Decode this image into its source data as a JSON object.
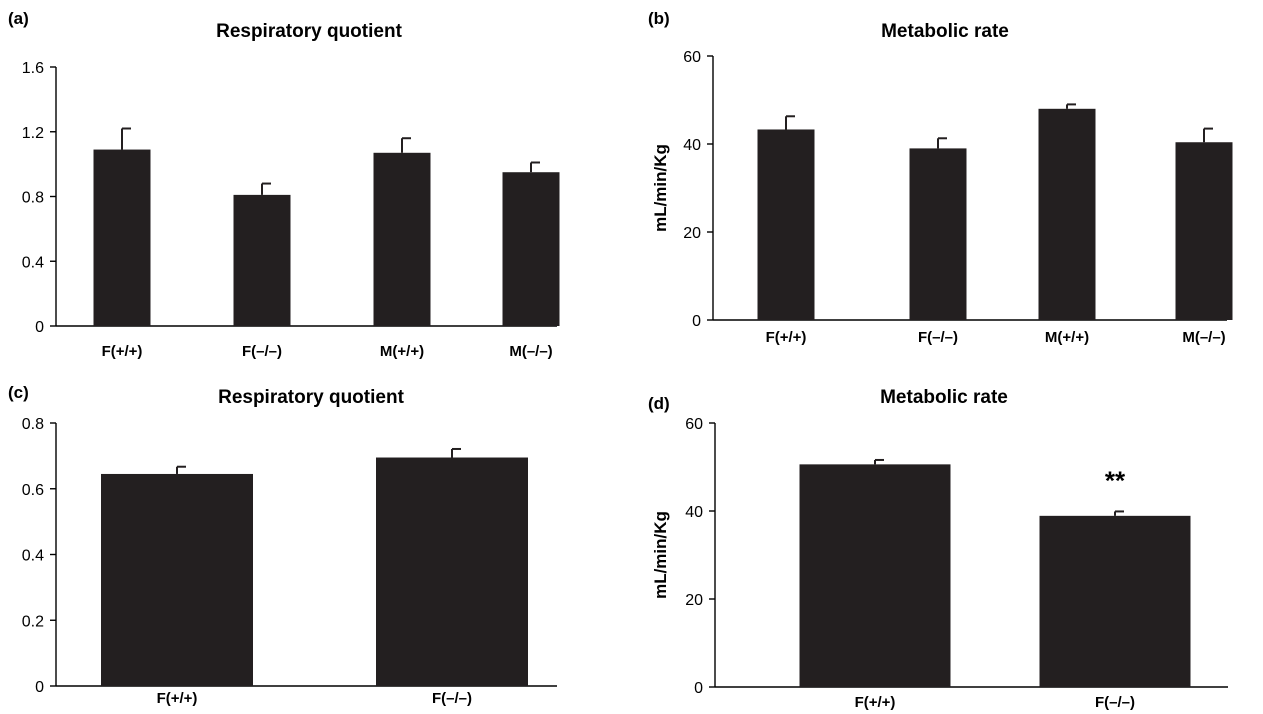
{
  "chart_data": [
    {
      "panel": "(a)",
      "type": "bar",
      "title": "Respiratory quotient",
      "xlabel": "",
      "ylabel": "",
      "categories": [
        "F(+/+)",
        "F(–/–)",
        "M(+/+)",
        "M(–/–)"
      ],
      "values": [
        1.09,
        0.81,
        1.07,
        0.95
      ],
      "errors": [
        0.13,
        0.07,
        0.09,
        0.06
      ],
      "ylim": [
        0,
        1.6
      ],
      "yticks": [
        "0",
        "0.4",
        "0.8",
        "1.2",
        "1.6"
      ],
      "bar_color": "#231f20",
      "annotations": []
    },
    {
      "panel": "(b)",
      "type": "bar",
      "title": "Metabolic rate",
      "xlabel": "",
      "ylabel": "mL/min/Kg",
      "categories": [
        "F(+/+)",
        "F(–/–)",
        "M(+/+)",
        "M(–/–)"
      ],
      "values": [
        43.3,
        39.0,
        48.0,
        40.4
      ],
      "errors": [
        3.0,
        2.3,
        1.0,
        3.1
      ],
      "ylim": [
        0,
        60
      ],
      "yticks": [
        "0",
        "20",
        "40",
        "60"
      ],
      "bar_color": "#231f20",
      "annotations": []
    },
    {
      "panel": "(c)",
      "type": "bar",
      "title": "Respiratory quotient",
      "xlabel": "",
      "ylabel": "",
      "categories": [
        "F(+/+)",
        "F(–/–)"
      ],
      "values": [
        0.645,
        0.695
      ],
      "errors": [
        0.022,
        0.026
      ],
      "ylim": [
        0,
        0.8
      ],
      "yticks": [
        "0",
        "0.2",
        "0.4",
        "0.6",
        "0.8"
      ],
      "bar_color": "#231f20",
      "annotations": []
    },
    {
      "panel": "(d)",
      "type": "bar",
      "title": "Metabolic rate",
      "xlabel": "",
      "ylabel": "mL/min/Kg",
      "categories": [
        "F(+/+)",
        "F(–/–)"
      ],
      "values": [
        50.6,
        38.9
      ],
      "errors": [
        1.0,
        1.0
      ],
      "ylim": [
        0,
        60
      ],
      "yticks": [
        "0",
        "20",
        "40",
        "60"
      ],
      "bar_color": "#231f20",
      "annotations": [
        {
          "category": 1,
          "text": "**"
        }
      ]
    }
  ]
}
